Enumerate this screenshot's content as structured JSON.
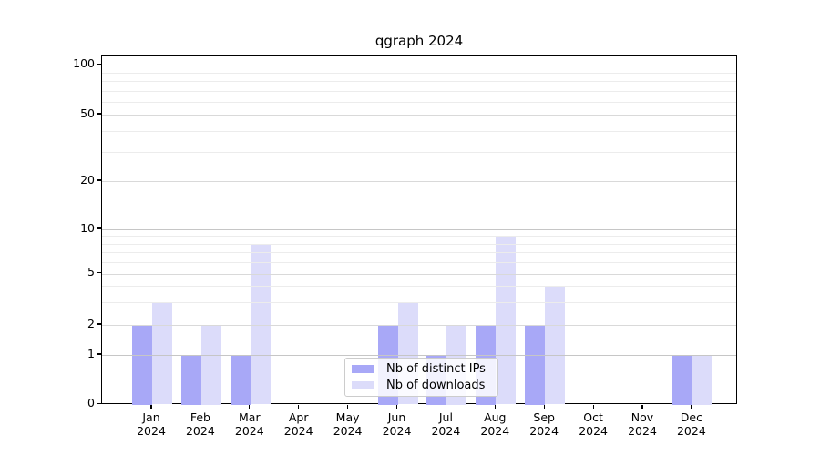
{
  "title": "qgraph 2024",
  "chart_data": {
    "type": "bar",
    "title": "qgraph 2024",
    "xlabel": "",
    "ylabel": "",
    "categories": [
      "Jan 2024",
      "Feb 2024",
      "Mar 2024",
      "Apr 2024",
      "May 2024",
      "Jun 2024",
      "Jul 2024",
      "Aug 2024",
      "Sep 2024",
      "Oct 2024",
      "Nov 2024",
      "Dec 2024"
    ],
    "x_tick_months": [
      "Jan",
      "Feb",
      "Mar",
      "Apr",
      "May",
      "Jun",
      "Jul",
      "Aug",
      "Sep",
      "Oct",
      "Nov",
      "Dec"
    ],
    "x_tick_year": "2024",
    "series": [
      {
        "name": "Nb of distinct IPs",
        "color": "#a8a8f7",
        "values": [
          2,
          1,
          1,
          0,
          0,
          2,
          1,
          2,
          2,
          0,
          0,
          1
        ]
      },
      {
        "name": "Nb of downloads",
        "color": "#dcdcfa",
        "values": [
          3,
          2,
          8,
          0,
          0,
          3,
          2,
          9,
          4,
          0,
          0,
          1
        ]
      }
    ],
    "y_axis": {
      "scale": "quasi-log",
      "tick_labels": [
        "0",
        "1",
        "2",
        "5",
        "10",
        "20",
        "50",
        "100"
      ],
      "tick_values": [
        0,
        1,
        2,
        5,
        10,
        20,
        50,
        100
      ],
      "range": [
        0,
        110
      ]
    },
    "grid": {
      "horizontal_major": true,
      "horizontal_minor": true,
      "vertical": false
    },
    "legend": {
      "position": "inside-lower-center",
      "entries": [
        "Nb of distinct IPs",
        "Nb of downloads"
      ]
    }
  },
  "colors": {
    "bar_distinct_ips": "#a8a8f7",
    "bar_downloads": "#dcdcfa",
    "major_grid": "#c6c6c6",
    "labeled_minor_grid": "#d9d9d9",
    "minor_grid": "#ececec",
    "spine": "#000000",
    "background": "#ffffff",
    "legend_border": "#cccccc"
  }
}
